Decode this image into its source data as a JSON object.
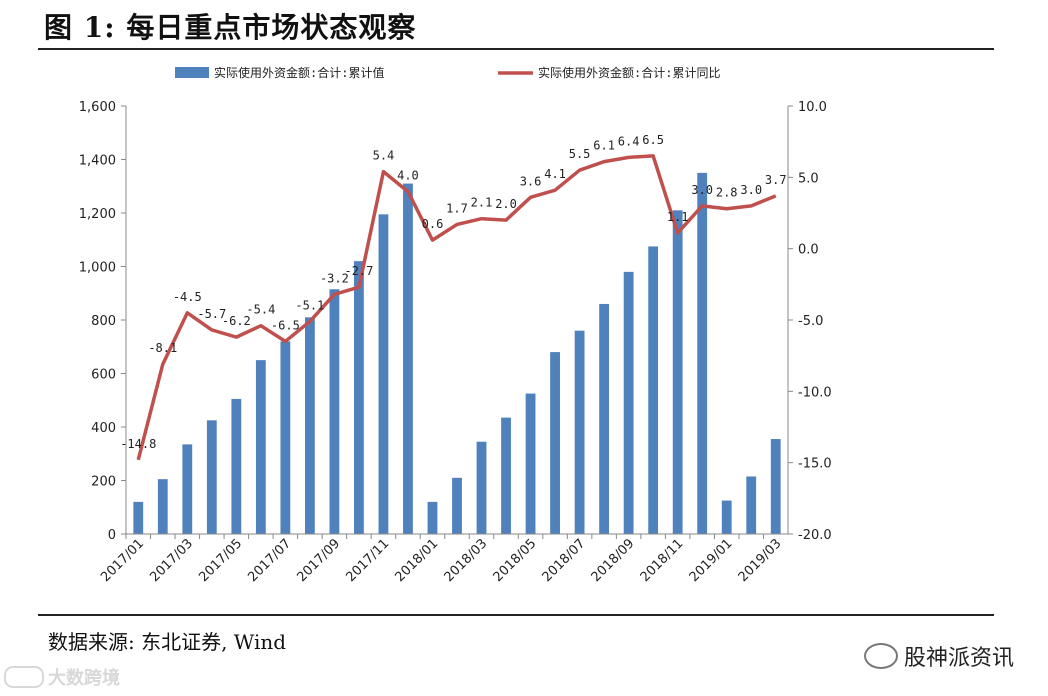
{
  "figure": {
    "title": "图 1:  每日重点市场状态观察",
    "source": "数据来源:  东北证券, Wind",
    "wechat_brand": "股神派资讯",
    "watermark_text": "大数跨境"
  },
  "chart_data": {
    "type": "bar+line",
    "categories": [
      "2017/01",
      "2017/02",
      "2017/03",
      "2017/04",
      "2017/05",
      "2017/06",
      "2017/07",
      "2017/08",
      "2017/09",
      "2017/10",
      "2017/11",
      "2017/12",
      "2018/01",
      "2018/02",
      "2018/03",
      "2018/04",
      "2018/05",
      "2018/06",
      "2018/07",
      "2018/08",
      "2018/09",
      "2018/10",
      "2018/11",
      "2018/12",
      "2019/01",
      "2019/02",
      "2019/03"
    ],
    "x_tick_labels": [
      "2017/01",
      "2017/03",
      "2017/05",
      "2017/07",
      "2017/09",
      "2017/11",
      "2018/01",
      "2018/03",
      "2018/05",
      "2018/07",
      "2018/09",
      "2018/11",
      "2019/01",
      "2019/03"
    ],
    "series": [
      {
        "name": "实际使用外资金额:合计:累计值",
        "type": "bar",
        "axis": "left",
        "color": "#4f81bd",
        "values": [
          120,
          205,
          335,
          425,
          505,
          650,
          720,
          810,
          915,
          1020,
          1195,
          1310,
          120,
          210,
          345,
          435,
          525,
          680,
          760,
          860,
          980,
          1075,
          1210,
          1350,
          125,
          215,
          355
        ]
      },
      {
        "name": "实际使用外资金额:合计:累计同比",
        "type": "line",
        "axis": "right",
        "color": "#c0504d",
        "values": [
          -14.8,
          -8.1,
          -4.5,
          -5.7,
          -6.2,
          -5.4,
          -6.5,
          -5.1,
          -3.2,
          -2.7,
          5.4,
          4.0,
          0.6,
          1.7,
          2.1,
          2.0,
          3.6,
          4.1,
          5.5,
          6.1,
          6.4,
          6.5,
          1.1,
          3.0,
          2.8,
          3.0,
          3.7
        ],
        "labels": [
          "-14.8",
          "-8.1",
          "-4.5",
          "-5.7",
          "-6.2",
          "-5.4",
          "-6.5",
          "-5.1",
          "-3.2",
          "-2.7",
          "5.4",
          "4.0",
          "0.6",
          "1.7",
          "2.1",
          "2.0",
          "3.6",
          "4.1",
          "5.5",
          "6.1",
          "6.4",
          "6.5",
          "1.1",
          "3.0",
          "2.8",
          "3.0",
          "3.7"
        ]
      }
    ],
    "y_left": {
      "min": 0,
      "max": 1600,
      "ticks": [
        "0",
        "200",
        "400",
        "600",
        "800",
        "1,000",
        "1,200",
        "1,400",
        "1,600"
      ]
    },
    "y_right": {
      "min": -20,
      "max": 10,
      "ticks": [
        "-20.0",
        "-15.0",
        "-10.0",
        "-5.0",
        "0.0",
        "5.0",
        "10.0"
      ]
    },
    "legend_position": "top",
    "grid": false
  }
}
